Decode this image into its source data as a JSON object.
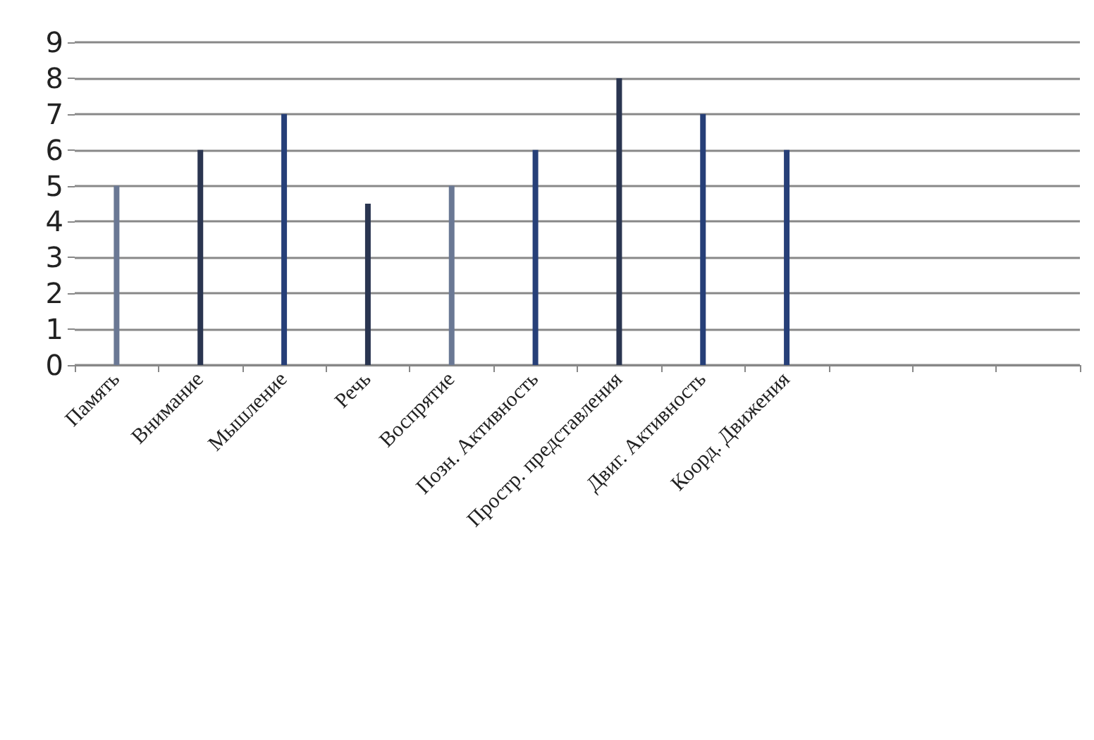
{
  "chart_data": {
    "type": "bar",
    "categories": [
      "Память",
      "Внимание",
      "Мышление",
      "Речь",
      "Воспрятие",
      "Позн. Активность",
      "Простр. представления",
      "Двиг. Активность",
      "Коорд. Движения",
      null,
      null,
      null
    ],
    "values": [
      5,
      6,
      7,
      4.5,
      5,
      6,
      8,
      7,
      6,
      null,
      null,
      null
    ],
    "colors": [
      "#6a7894",
      "#2a3550",
      "#263f78",
      "#2a3550",
      "#6a7894",
      "#263f78",
      "#2a3550",
      "#263f78",
      "#263f78",
      "#263f78",
      "#263f78",
      "#263f78"
    ],
    "ylim": [
      0,
      9
    ],
    "yticks": [
      0,
      1,
      2,
      3,
      4,
      5,
      6,
      7,
      8,
      9
    ],
    "grid": "y"
  }
}
